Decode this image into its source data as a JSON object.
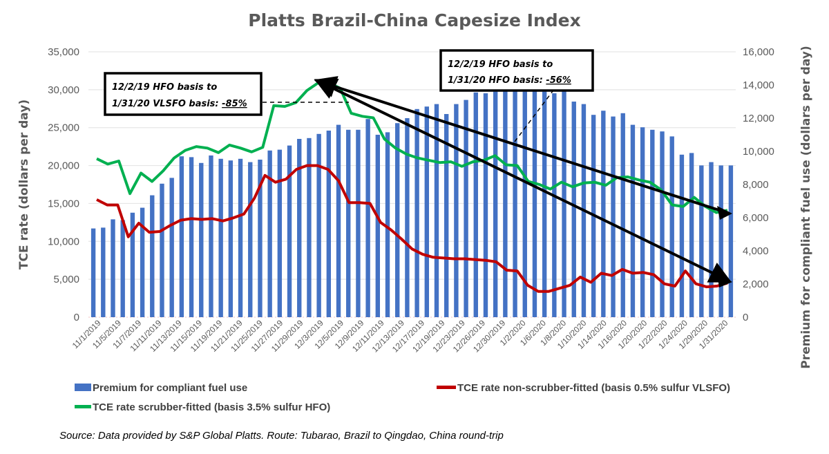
{
  "chart_data": {
    "type": "bar+line",
    "title": "Platts Brazil-China Capesize Index",
    "ylabel_left": "TCE rate (dollars per day)",
    "ylabel_right": "Premium for compliant fuel use (dollars per day)",
    "ylim_left": [
      0,
      35000
    ],
    "ylim_right": [
      0,
      16000
    ],
    "yticks_left": [
      "0",
      "5,000",
      "10,000",
      "15,000",
      "20,000",
      "25,000",
      "30,000",
      "35,000"
    ],
    "yticks_right": [
      "0",
      "2,000",
      "4,000",
      "6,000",
      "8,000",
      "10,000",
      "12,000",
      "14,000",
      "16,000"
    ],
    "grid": true,
    "x_tick_labels": [
      "11/1/2019",
      "11/5/2019",
      "11/7/2019",
      "11/11/2019",
      "11/13/2019",
      "11/15/2019",
      "11/19/2019",
      "11/21/2019",
      "11/25/2019",
      "11/27/2019",
      "11/29/2019",
      "12/3/2019",
      "12/5/2019",
      "12/9/2019",
      "12/11/2019",
      "12/13/2019",
      "12/17/2019",
      "12/19/2019",
      "12/23/2019",
      "12/26/2019",
      "12/30/2019",
      "1/2/2020",
      "1/6/2020",
      "1/8/2020",
      "1/10/2020",
      "1/14/2020",
      "1/16/2020",
      "1/20/2020",
      "1/22/2020",
      "1/24/2020",
      "1/29/2020",
      "1/31/2020"
    ],
    "series": [
      {
        "name": "Premium for compliant fuel use",
        "type": "bar",
        "axis": "right",
        "color": "#4472C4",
        "values": [
          5350,
          5400,
          5900,
          5850,
          6300,
          6600,
          7350,
          8050,
          8400,
          9700,
          9650,
          9300,
          9750,
          9550,
          9450,
          9550,
          9350,
          9500,
          10050,
          10100,
          10350,
          10750,
          10800,
          11050,
          11250,
          11600,
          11300,
          11300,
          11950,
          11000,
          11150,
          11700,
          12000,
          12550,
          12700,
          12850,
          12250,
          12850,
          13100,
          13550,
          13500,
          13600,
          13650,
          13700,
          13600,
          13650,
          13600,
          13500,
          13700,
          13000,
          12850,
          12200,
          12450,
          12100,
          12300,
          11600,
          11450,
          11300,
          11200,
          10900,
          9800,
          9900,
          9150,
          9350,
          9150,
          9150
        ],
        "display_note": "Some bars near 1/2-1/6/2020 are partially occluded by annotation box"
      },
      {
        "name": "TCE rate non-scrubber-fitted (basis 0.5% sulfur VLSFO)",
        "type": "line",
        "axis": "left",
        "color": "#C00000",
        "values": [
          15500,
          14800,
          14800,
          10600,
          12400,
          11200,
          11300,
          12100,
          12800,
          13000,
          12900,
          13000,
          12700,
          13100,
          13600,
          15700,
          18700,
          17800,
          18200,
          19500,
          20000,
          20000,
          19500,
          18000,
          15100,
          15100,
          15000,
          12500,
          11500,
          10300,
          9000,
          8300,
          7900,
          7800,
          7700,
          7700,
          7600,
          7500,
          7300,
          6200,
          6100,
          4200,
          3400,
          3400,
          3800,
          4200,
          5300,
          4600,
          5800,
          5500,
          6300,
          5800,
          5900,
          5600,
          4400,
          4100,
          6100,
          4400,
          4000,
          4100,
          4500
        ]
      },
      {
        "name": "TCE rate scrubber-fitted (basis 3.5% sulfur HFO)",
        "type": "line",
        "axis": "left",
        "color": "#00B050",
        "values": [
          20900,
          20200,
          20600,
          16300,
          19000,
          17900,
          19300,
          21000,
          22000,
          22500,
          22300,
          21700,
          22700,
          22300,
          21800,
          22400,
          27900,
          27800,
          28300,
          29900,
          30900,
          30900,
          30200,
          26900,
          26500,
          26300,
          23500,
          22300,
          21500,
          21000,
          20700,
          20400,
          20500,
          19900,
          20500,
          20700,
          21300,
          20100,
          20000,
          17900,
          17500,
          16900,
          17800,
          17200,
          17700,
          17800,
          17400,
          18400,
          18500,
          18100,
          17800,
          16800,
          14800,
          14600,
          15800,
          14600,
          13800,
          14100
        ]
      }
    ],
    "annotations": [
      {
        "text_line1": "12/2/19 HFO basis to",
        "text_line2_prefix": "1/31/20 VLSFO basis: ",
        "value": "-85%"
      },
      {
        "text_line1": "12/2/19 HFO basis to",
        "text_line2_prefix": "1/31/20 HFO basis: ",
        "value": "-56%"
      }
    ],
    "legend": {
      "placement": "bottom",
      "items": [
        {
          "label": "Premium for compliant fuel use",
          "color": "#4472C4",
          "kind": "box"
        },
        {
          "label": "TCE rate non-scrubber-fitted (basis 0.5% sulfur VLSFO)",
          "color": "#C00000",
          "kind": "line"
        },
        {
          "label": "TCE rate scrubber-fitted (basis 3.5% sulfur HFO)",
          "color": "#00B050",
          "kind": "line"
        }
      ]
    }
  },
  "source_note": "Source: Data provided by S&P Global Platts.  Route: Tubarao, Brazil to Qingdao, China round-trip"
}
